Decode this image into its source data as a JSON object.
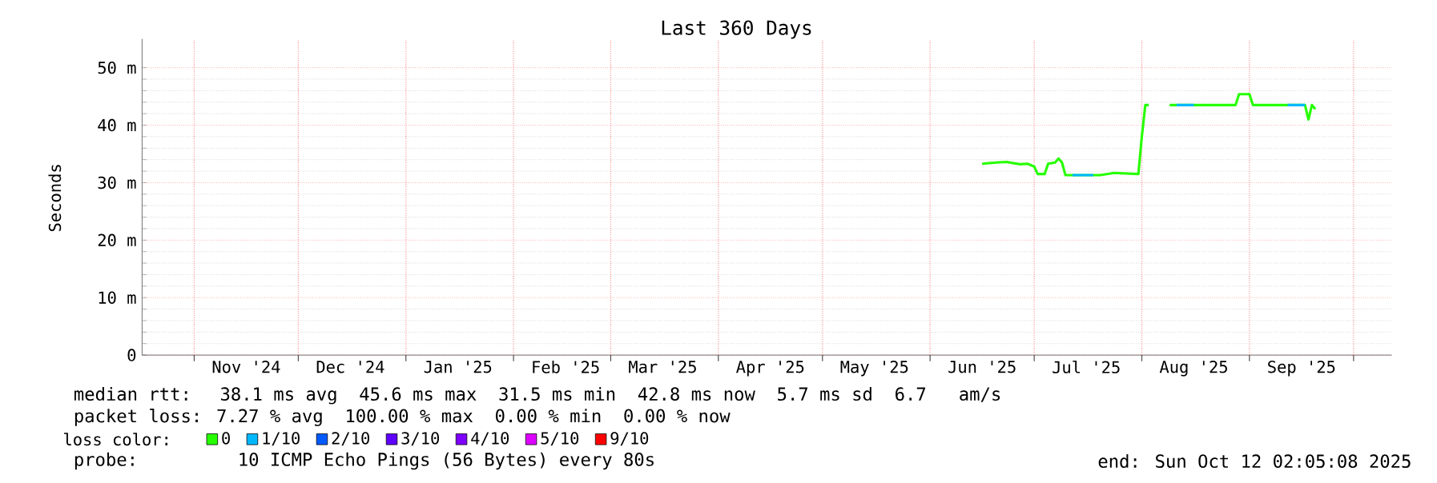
{
  "chart_data": {
    "type": "line",
    "title": "Last 360 Days",
    "ylabel": "Seconds",
    "xlim": [
      "2024-10-17",
      "2025-10-12"
    ],
    "ylim": [
      0,
      55
    ],
    "xticks": [
      {
        "value": "2024-11-01",
        "label": null
      },
      {
        "value": "2024-12-01",
        "label": null
      },
      {
        "value": "2025-01-01",
        "label": null
      },
      {
        "value": "2025-02-01",
        "label": null
      },
      {
        "value": "2025-03-01",
        "label": null
      },
      {
        "value": "2025-04-01",
        "label": null
      },
      {
        "value": "2025-05-01",
        "label": null
      },
      {
        "value": "2025-06-01",
        "label": null
      },
      {
        "value": "2025-07-01",
        "label": null
      },
      {
        "value": "2025-08-01",
        "label": null
      },
      {
        "value": "2025-09-01",
        "label": null
      },
      {
        "value": "2025-10-01",
        "label": null
      },
      {
        "value": "2024-11-16",
        "label": "Nov '24"
      },
      {
        "value": "2024-12-16",
        "label": "Dec '24"
      },
      {
        "value": "2025-01-16",
        "label": "Jan '25"
      },
      {
        "value": "2025-02-16",
        "label": "Feb '25"
      },
      {
        "value": "2025-03-16",
        "label": "Mar '25"
      },
      {
        "value": "2025-04-16",
        "label": "Apr '25"
      },
      {
        "value": "2025-05-16",
        "label": "May '25"
      },
      {
        "value": "2025-06-16",
        "label": "Jun '25"
      },
      {
        "value": "2025-07-16",
        "label": "Jul '25"
      },
      {
        "value": "2025-08-16",
        "label": "Aug '25"
      },
      {
        "value": "2025-09-16",
        "label": "Sep '25"
      }
    ],
    "yticks": [
      0,
      {
        "value": 10,
        "label": "10 m"
      },
      {
        "value": 20,
        "label": "20 m"
      },
      {
        "value": 30,
        "label": "30 m"
      },
      {
        "value": 40,
        "label": "40 m"
      },
      {
        "value": 50,
        "label": "50 m"
      }
    ],
    "grid": true,
    "legend": "bottom",
    "legend_title": "loss color:",
    "series": [
      {
        "name": "0",
        "color": "#26ff00",
        "x": [
          "2025-06-16",
          "2025-06-20",
          "2025-06-23",
          "2025-06-27",
          "2025-06-29",
          "2025-07-01",
          "2025-07-02",
          "2025-07-04",
          "2025-07-05",
          "2025-07-07",
          "2025-07-08",
          "2025-07-09",
          "2025-07-10",
          "2025-07-20",
          "2025-07-24",
          "2025-07-31",
          "2025-08-01",
          "2025-08-02",
          "2025-08-03",
          "2025-08-06",
          "2025-08-09",
          "2025-08-21",
          "2025-08-28",
          "2025-08-29",
          "2025-09-01",
          "2025-09-02",
          "2025-09-17",
          "2025-09-18",
          "2025-09-19",
          "2025-09-20"
        ],
        "values": [
          33.3,
          33.5,
          33.6,
          33.2,
          33.3,
          32.8,
          31.5,
          31.5,
          33.3,
          33.5,
          34.2,
          33.5,
          31.3,
          31.3,
          31.7,
          31.5,
          38,
          43.5,
          43.5,
          null,
          43.5,
          43.5,
          43.5,
          45.4,
          45.4,
          43.5,
          43.5,
          41,
          43.5,
          42.8
        ]
      },
      {
        "name": "1/10",
        "color": "#00b8ff",
        "x": [
          "2025-07-12",
          "2025-07-18",
          "2025-07-25",
          "2025-08-11",
          "2025-08-16",
          "2025-08-25",
          "2025-09-12",
          "2025-09-17"
        ],
        "values": [
          31.3,
          31.3,
          null,
          43.5,
          43.5,
          null,
          43.5,
          43.5
        ]
      },
      {
        "name": "2/10",
        "color": "#0059ff"
      },
      {
        "name": "3/10",
        "color": "#5e00ff"
      },
      {
        "name": "4/10",
        "color": "#7e00ff"
      },
      {
        "name": "5/10",
        "color": "#dd00ff"
      },
      {
        "name": "9/10",
        "color": "#ff0000"
      }
    ],
    "annotations": [
      "median rtt:  38.1 ms avg  45.6 ms max  31.5 ms min  42.8 ms now  5.7 ms sd  6.7   am/s",
      "packet loss: 7.27 % avg  100.00 % max  0.00 % min  0.00 % now",
      "probe:       10 ICMP Echo Pings (56 Bytes) every 80s",
      "end: Sun Oct 12 02:05:08 2025"
    ]
  }
}
